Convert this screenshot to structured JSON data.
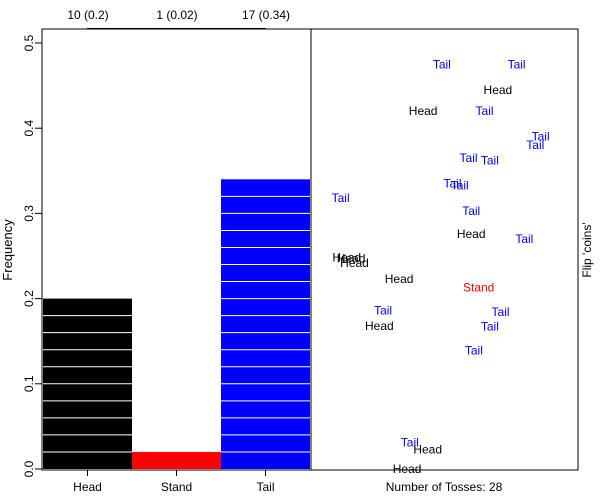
{
  "chart_data": {
    "type": "bar",
    "title": "",
    "xlabel": "",
    "ylabel": "Frequency",
    "ylim": [
      0,
      0.52
    ],
    "yticks": [
      0.0,
      0.1,
      0.2,
      0.3,
      0.4,
      0.5
    ],
    "ytick_labels": [
      "0.0",
      "0.1",
      "0.2",
      "0.3",
      "0.4",
      "0.5"
    ],
    "categories": [
      "Head",
      "Stand",
      "Tail"
    ],
    "values": [
      0.2,
      0.02,
      0.34
    ],
    "counts": [
      10,
      1,
      17
    ],
    "count_labels": [
      "10 (0.2)",
      "1 (0.02)",
      "17 (0.34)"
    ],
    "colors": [
      "#000000",
      "#ff0000",
      "#0000ff"
    ],
    "tosses_label": "Number of Tosses: 28",
    "right_panel_label": "Flip 'coins'",
    "tosses": [
      {
        "label": "Tail",
        "x": 0.49,
        "y": 0.475,
        "color": "#0000ff"
      },
      {
        "label": "Tail",
        "x": 0.77,
        "y": 0.475,
        "color": "#0000ff"
      },
      {
        "label": "Head",
        "x": 0.7,
        "y": 0.445,
        "color": "#000000"
      },
      {
        "label": "Head",
        "x": 0.42,
        "y": 0.42,
        "color": "#000000"
      },
      {
        "label": "Tail",
        "x": 0.65,
        "y": 0.42,
        "color": "#0000ff"
      },
      {
        "label": "Tail",
        "x": 0.86,
        "y": 0.39,
        "color": "#0000ff"
      },
      {
        "label": "Tail",
        "x": 0.84,
        "y": 0.38,
        "color": "#0000ff"
      },
      {
        "label": "Tail",
        "x": 0.59,
        "y": 0.365,
        "color": "#0000ff"
      },
      {
        "label": "Tail",
        "x": 0.67,
        "y": 0.362,
        "color": "#0000ff"
      },
      {
        "label": "Tail",
        "x": 0.53,
        "y": 0.335,
        "color": "#0000ff"
      },
      {
        "label": "Tail",
        "x": 0.557,
        "y": 0.333,
        "color": "#0000ff"
      },
      {
        "label": "Tail",
        "x": 0.111,
        "y": 0.318,
        "color": "#0000ff"
      },
      {
        "label": "Tail",
        "x": 0.6,
        "y": 0.303,
        "color": "#0000ff"
      },
      {
        "label": "Head",
        "x": 0.6,
        "y": 0.276,
        "color": "#000000"
      },
      {
        "label": "Tail",
        "x": 0.799,
        "y": 0.27,
        "color": "#0000ff"
      },
      {
        "label": "Head",
        "x": 0.134,
        "y": 0.248,
        "color": "#000000"
      },
      {
        "label": "Head",
        "x": 0.15,
        "y": 0.247,
        "color": "#000000"
      },
      {
        "label": "Head",
        "x": 0.163,
        "y": 0.242,
        "color": "#000000"
      },
      {
        "label": "Head",
        "x": 0.33,
        "y": 0.223,
        "color": "#000000"
      },
      {
        "label": "Stand",
        "x": 0.628,
        "y": 0.213,
        "color": "#ff0000"
      },
      {
        "label": "Tail",
        "x": 0.27,
        "y": 0.186,
        "color": "#0000ff"
      },
      {
        "label": "Tail",
        "x": 0.71,
        "y": 0.184,
        "color": "#0000ff"
      },
      {
        "label": "Head",
        "x": 0.256,
        "y": 0.168,
        "color": "#000000"
      },
      {
        "label": "Tail",
        "x": 0.67,
        "y": 0.167,
        "color": "#0000ff"
      },
      {
        "label": "Tail",
        "x": 0.61,
        "y": 0.139,
        "color": "#0000ff"
      },
      {
        "label": "Tail",
        "x": 0.37,
        "y": 0.031,
        "color": "#0000ff"
      },
      {
        "label": "Head",
        "x": 0.437,
        "y": 0.023,
        "color": "#000000"
      },
      {
        "label": "Head",
        "x": 0.36,
        "y": 0.0,
        "color": "#000000"
      }
    ]
  }
}
